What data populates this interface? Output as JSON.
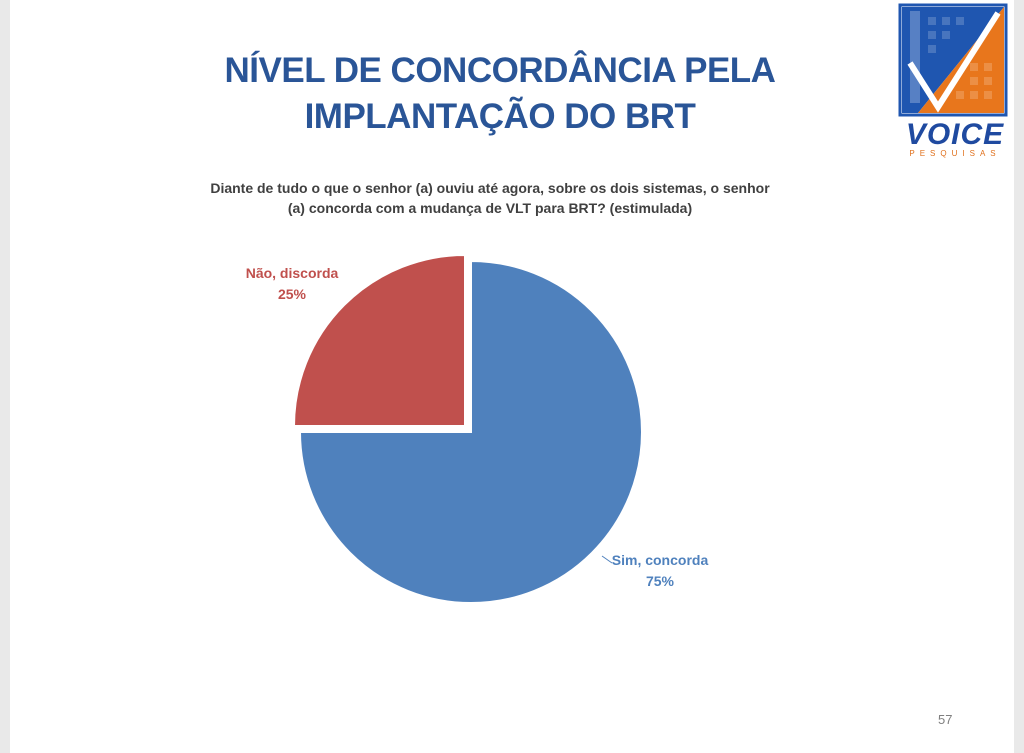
{
  "slide": {
    "title_lines": [
      "NÍVEL DE CONCORDÂNCIA PELA",
      "IMPLANTAÇÃO DO BRT"
    ],
    "subtitle_lines": [
      "Diante de tudo o que o senhor (a) ouviu até agora, sobre os dois sistemas, o senhor",
      "(a) concorda com a mudança de VLT para BRT? (estimulada)"
    ],
    "page_number": "57"
  },
  "logo": {
    "word": "VOICE",
    "sub": "PESQUISAS",
    "colors": {
      "blue": "#1f56b0",
      "orange": "#e8761c"
    }
  },
  "chart_data": {
    "type": "pie",
    "title": "NÍVEL DE CONCORDÂNCIA PELA IMPLANTAÇÃO DO BRT",
    "slices": [
      {
        "label": "Não, discorda",
        "percent_label": "25%",
        "value": 25,
        "color": "#c0504d"
      },
      {
        "label": "Sim, concorda",
        "percent_label": "75%",
        "value": 75,
        "color": "#4f81bd"
      }
    ]
  }
}
